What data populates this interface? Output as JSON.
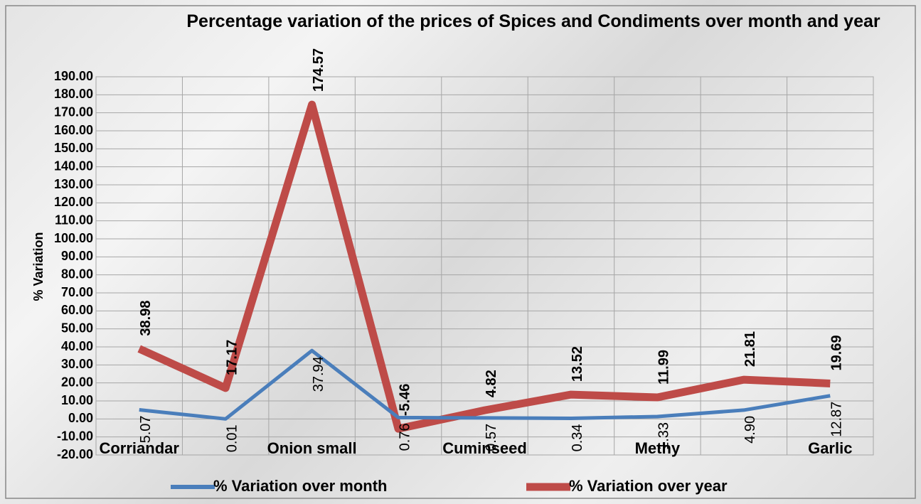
{
  "chart_data": {
    "type": "line",
    "title": "Percentage variation of the prices of Spices and Condiments over month and year",
    "y_label": "% Variation",
    "categories": [
      "Corriandar",
      null,
      "Onion small",
      null,
      "Cuminseed",
      null,
      "Methy",
      null,
      "Garlic"
    ],
    "series": [
      {
        "name": "% Variation over month",
        "color": "#4a7ebb",
        "values": [
          5.07,
          0.01,
          37.94,
          0.76,
          0.57,
          0.34,
          1.33,
          4.9,
          12.87
        ],
        "value_labels": [
          "5.07",
          "0.01",
          "37.94",
          "0.76",
          "0.57",
          "0.34",
          "1.33",
          "4.90",
          "12.87"
        ]
      },
      {
        "name": "% Variation over year",
        "color": "#be4b48",
        "values": [
          38.98,
          17.17,
          174.57,
          -5.46,
          4.82,
          13.52,
          11.99,
          21.81,
          19.69
        ]
      }
    ],
    "ylim": [
      -20,
      190
    ],
    "yticks": [
      {
        "value": -20,
        "label": "-20.00"
      },
      {
        "value": -10,
        "label": "-10.00"
      },
      {
        "value": 0,
        "label": "0.00"
      },
      {
        "value": 10,
        "label": "10.00"
      },
      {
        "value": 20,
        "label": "20.00"
      },
      {
        "value": 30,
        "label": "30.00"
      },
      {
        "value": 40,
        "label": "40.00"
      },
      {
        "value": 50,
        "label": "50.00"
      },
      {
        "value": 60,
        "label": "60.00"
      },
      {
        "value": 70,
        "label": "70.00"
      },
      {
        "value": 80,
        "label": "80.00"
      },
      {
        "value": 90,
        "label": "90.00"
      },
      {
        "value": 100,
        "label": "100.00"
      },
      {
        "value": 110,
        "label": "110.00"
      },
      {
        "value": 120,
        "label": "120.00"
      },
      {
        "value": 130,
        "label": "130.00"
      },
      {
        "value": 140,
        "label": "140.00"
      },
      {
        "value": 150,
        "label": "150.00"
      },
      {
        "value": 160,
        "label": "160.00"
      },
      {
        "value": 170,
        "label": "170.00"
      },
      {
        "value": 180,
        "label": "180.00"
      },
      {
        "value": 190,
        "label": "190.00"
      }
    ],
    "grid": true,
    "legend": "bottom"
  }
}
